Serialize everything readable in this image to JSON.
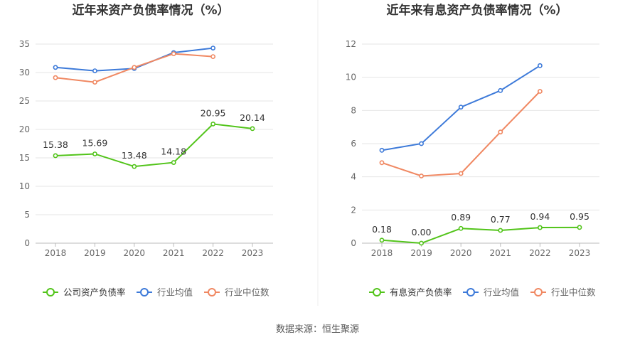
{
  "footer": {
    "source": "数据来源：恒生聚源"
  },
  "chart_data": [
    {
      "type": "line",
      "title": "近年来资产负债率情况（%）",
      "categories": [
        "2018",
        "2019",
        "2020",
        "2021",
        "2022",
        "2023"
      ],
      "ylim": [
        0,
        35
      ],
      "yticks": [
        0,
        5,
        10,
        15,
        20,
        25,
        30,
        35
      ],
      "grid": true,
      "legend_position": "bottom",
      "series": [
        {
          "name": "公司资产负债率",
          "color": "#52c41a",
          "values": [
            15.38,
            15.69,
            13.48,
            14.18,
            20.95,
            20.14
          ],
          "labels": [
            "15.38",
            "15.69",
            "13.48",
            "14.18",
            "20.95",
            "20.14"
          ]
        },
        {
          "name": "行业均值",
          "color": "#3d7ad9",
          "values": [
            30.9,
            30.3,
            30.7,
            33.5,
            34.3,
            null
          ]
        },
        {
          "name": "行业中位数",
          "color": "#f08862",
          "values": [
            29.1,
            28.3,
            30.9,
            33.3,
            32.8,
            null
          ]
        }
      ]
    },
    {
      "type": "line",
      "title": "近年来有息资产负债率情况（%）",
      "categories": [
        "2018",
        "2019",
        "2020",
        "2021",
        "2022",
        "2023"
      ],
      "ylim": [
        0,
        12
      ],
      "yticks": [
        0,
        2,
        4,
        6,
        8,
        10,
        12
      ],
      "grid": true,
      "legend_position": "bottom",
      "series": [
        {
          "name": "有息资产负债率",
          "color": "#52c41a",
          "values": [
            0.18,
            0.0,
            0.89,
            0.77,
            0.94,
            0.95
          ],
          "labels": [
            "0.18",
            "0.00",
            "0.89",
            "0.77",
            "0.94",
            "0.95"
          ]
        },
        {
          "name": "行业均值",
          "color": "#3d7ad9",
          "values": [
            5.6,
            6.0,
            8.2,
            9.2,
            10.7,
            null
          ]
        },
        {
          "name": "行业中位数",
          "color": "#f08862",
          "values": [
            4.85,
            4.05,
            4.2,
            6.7,
            9.15,
            null
          ]
        }
      ]
    }
  ]
}
